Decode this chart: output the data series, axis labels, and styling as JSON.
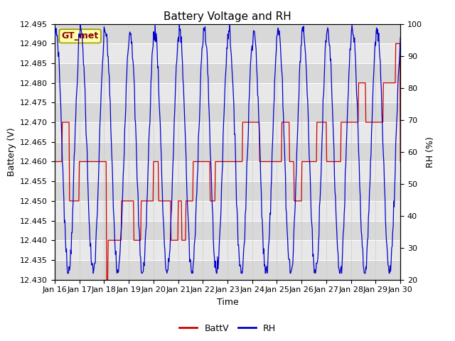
{
  "title": "Battery Voltage and RH",
  "xlabel": "Time",
  "ylabel_left": "Battery (V)",
  "ylabel_right": "RH (%)",
  "annotation": "GT_met",
  "legend_labels": [
    "BattV",
    "RH"
  ],
  "batt_color": "#CC0000",
  "rh_color": "#0000CC",
  "ylim_left": [
    12.43,
    12.495
  ],
  "ylim_right": [
    20,
    100
  ],
  "yticks_left": [
    12.43,
    12.435,
    12.44,
    12.445,
    12.45,
    12.455,
    12.46,
    12.465,
    12.47,
    12.475,
    12.48,
    12.485,
    12.49,
    12.495
  ],
  "yticks_right": [
    20,
    30,
    40,
    50,
    60,
    70,
    80,
    90,
    100
  ],
  "xtick_labels": [
    "Jan 16",
    "Jan 17",
    "Jan 18",
    "Jan 19",
    "Jan 20",
    "Jan 21",
    "Jan 22",
    "Jan 23",
    "Jan 24",
    "Jan 25",
    "Jan 26",
    "Jan 27",
    "Jan 28",
    "Jan 29",
    "Jan 30"
  ],
  "background_color": "#FFFFFF",
  "plot_bg_color": "#E8E8E8",
  "grid_color": "#FFFFFF",
  "title_fontsize": 11,
  "axis_fontsize": 9,
  "tick_fontsize": 8,
  "legend_fontsize": 9
}
